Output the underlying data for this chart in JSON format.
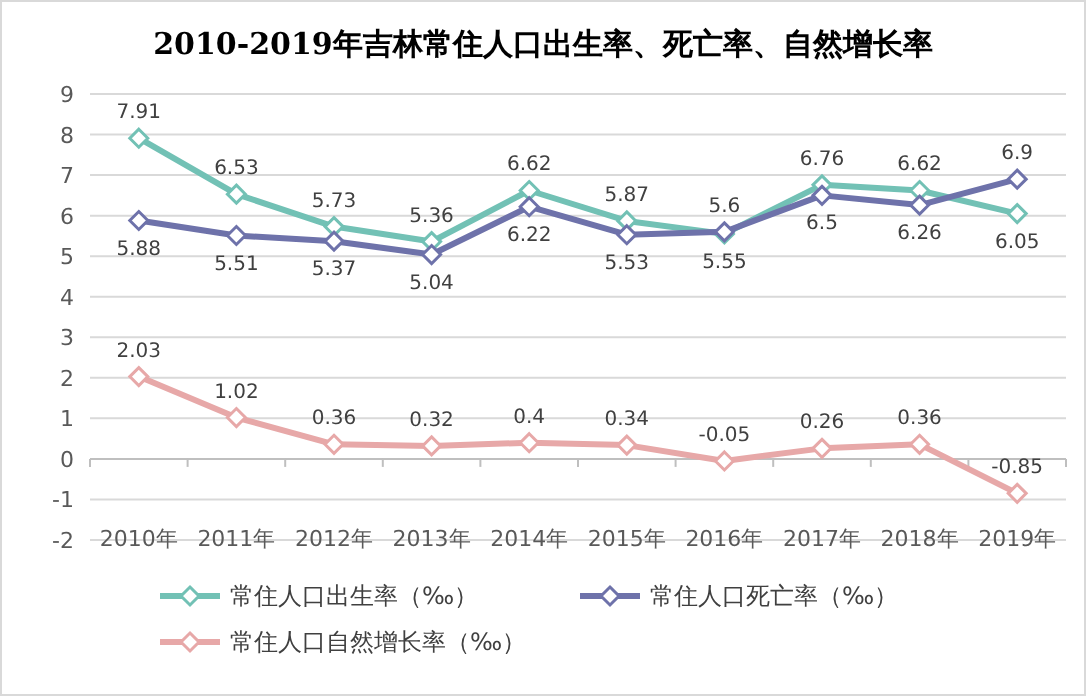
{
  "chart_data": {
    "type": "line",
    "title": "2010-2019年吉林常住人口出生率、死亡率、自然增长率",
    "categories": [
      "2010年",
      "2011年",
      "2012年",
      "2013年",
      "2014年",
      "2015年",
      "2016年",
      "2017年",
      "2018年",
      "2019年"
    ],
    "series": [
      {
        "name": "常住人口出生率（‰）",
        "color": "#72c1b5",
        "values": [
          7.91,
          6.53,
          5.73,
          5.36,
          6.62,
          5.87,
          5.55,
          6.76,
          6.62,
          6.05
        ]
      },
      {
        "name": "常住人口死亡率（‰）",
        "color": "#6e72aa",
        "values": [
          5.88,
          5.51,
          5.37,
          5.04,
          6.22,
          5.53,
          5.6,
          6.5,
          6.26,
          6.9
        ]
      },
      {
        "name": "常住人口自然增长率（‰）",
        "color": "#e7a8a8",
        "values": [
          2.03,
          1.02,
          0.36,
          0.32,
          0.4,
          0.34,
          -0.05,
          0.26,
          0.36,
          -0.85
        ]
      }
    ],
    "ylim": [
      -2,
      9
    ],
    "yticks": [
      -2,
      -1,
      0,
      1,
      2,
      3,
      4,
      5,
      6,
      7,
      8,
      9
    ],
    "grid": "y",
    "legend": "bottom",
    "marker": "diamond",
    "line_style": "solid",
    "data_labels": true
  }
}
